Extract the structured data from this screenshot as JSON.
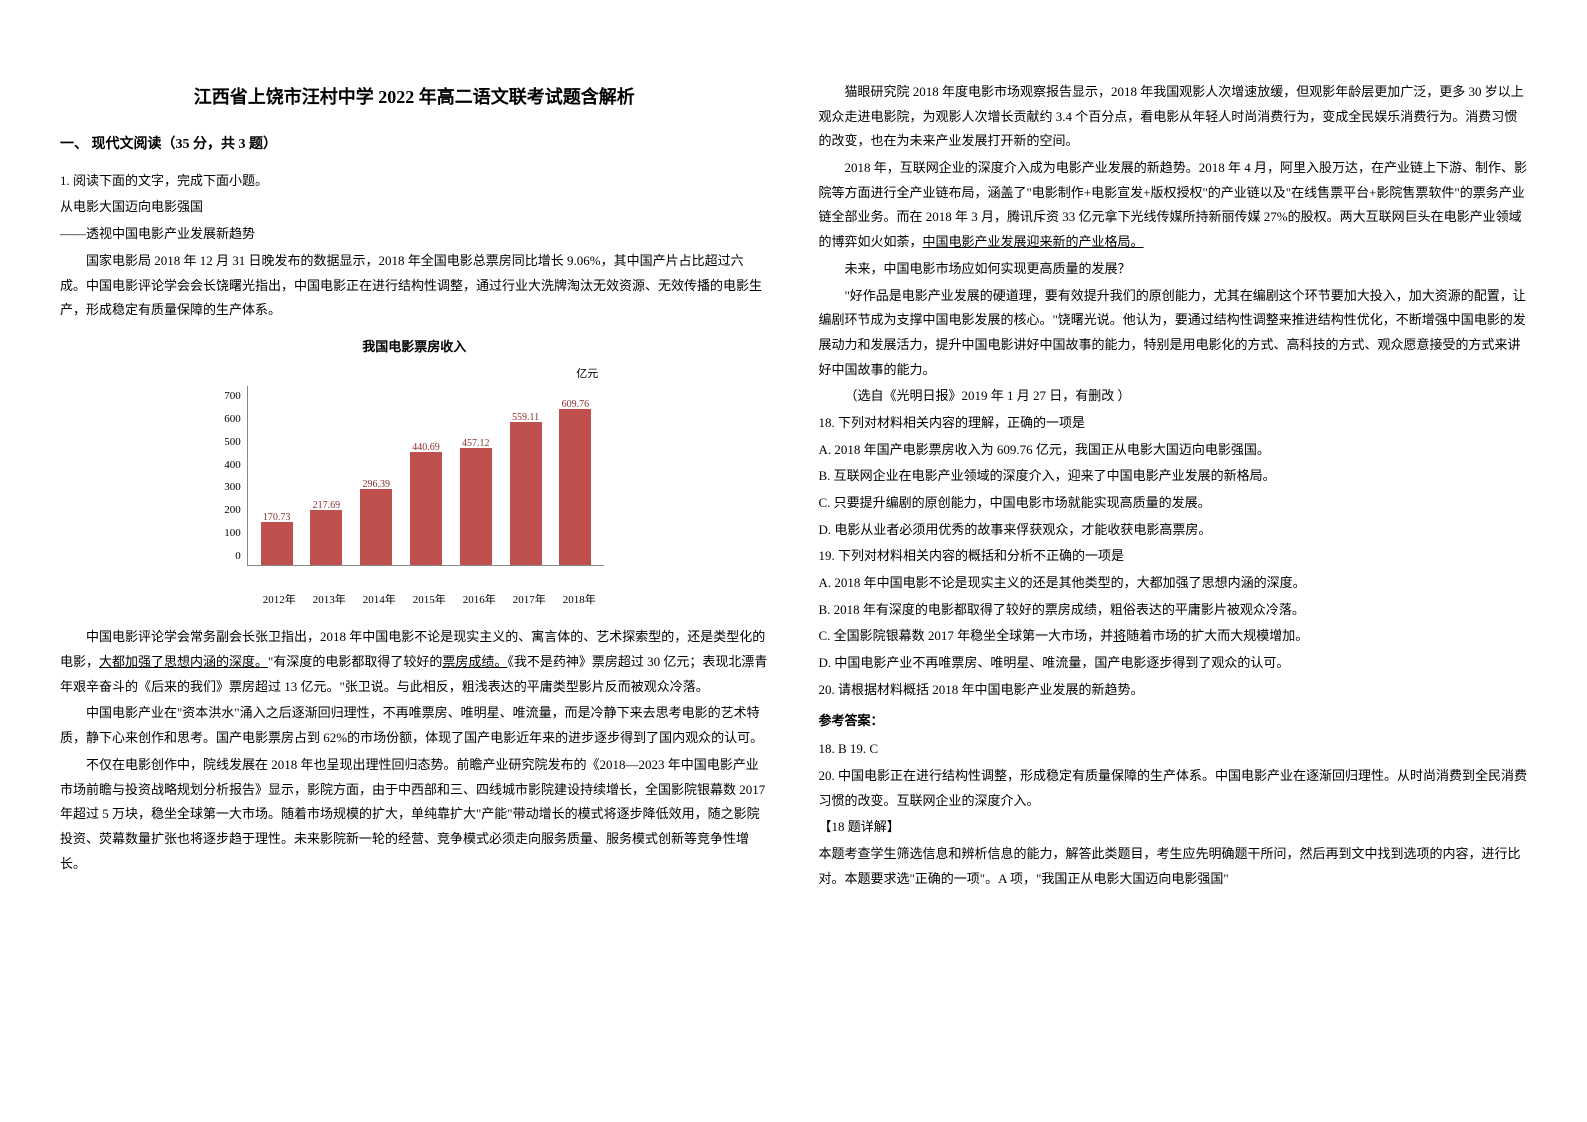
{
  "title": "江西省上饶市汪村中学 2022 年高二语文联考试题含解析",
  "section1": {
    "heading": "一、 现代文阅读（35 分，共 3 题）",
    "q1_intro": "1. 阅读下面的文字，完成下面小题。",
    "line2": "从电影大国迈向电影强国",
    "line3": "——透视中国电影产业发展新趋势",
    "p1": "国家电影局 2018 年 12 月 31 日晚发布的数据显示，2018 年全国电影总票房同比增长 9.06%，其中国产片占比超过六成。中国电影评论学会会长饶曙光指出，中国电影正在进行结构性调整，通过行业大洗牌淘汰无效资源、无效传播的电影生产，形成稳定有质量保障的生产体系。",
    "chart": {
      "title": "我国电影票房收入",
      "y_unit": "亿元",
      "y_ticks": [
        "700",
        "600",
        "500",
        "400",
        "300",
        "200",
        "100",
        "0"
      ],
      "y_max": 700,
      "bar_color": "#c0504d",
      "data": [
        {
          "year": "2012年",
          "value": 170.73,
          "label": "170.73"
        },
        {
          "year": "2013年",
          "value": 217.69,
          "label": "217.69"
        },
        {
          "year": "2014年",
          "value": 296.39,
          "label": "296.39"
        },
        {
          "year": "2015年",
          "value": 440.69,
          "label": "440.69"
        },
        {
          "year": "2016年",
          "value": 457.12,
          "label": "457.12"
        },
        {
          "year": "2017年",
          "value": 559.11,
          "label": "559.11"
        },
        {
          "year": "2018年",
          "value": 609.76,
          "label": "609.76"
        }
      ]
    },
    "p2_a": "中国电影评论学会常务副会长张卫指出，2018 年中国电影不论是现实主义的、寓言体的、艺术探索型的，还是类型化的电影，",
    "p2_u": "大都加强了思想内涵的深度。",
    "p2_b": "\"有深度的电影都取得了较好的",
    "p2_u2": "票房成绩。",
    "p2_c": "《我不是药神》票房超过 30 亿元；表现北漂青年艰辛奋斗的《后来的我们》票房超过 13 亿元。\"张卫说。与此相反，粗浅表达的平庸类型影片反而被观众冷落。",
    "p3": "中国电影产业在\"资本洪水\"涌入之后逐渐回归理性，不再唯票房、唯明星、唯流量，而是冷静下来去思考电影的艺术特质，静下心来创作和思考。国产电影票房占到 62%的市场份额，体现了国产电影近年来的进步逐步得到了国内观众的认可。",
    "p4": "不仅在电影创作中，院线发展在 2018 年也呈现出理性回归态势。前瞻产业研究院发布的《2018—2023 年中国电影产业市场前瞻与投资战略规划分析报告》显示，影院方面，由于中西部和三、四线城市影院建设持续增长，全国影院银幕数 2017 年超过 5 万块，稳坐全球第一大市场。随着市场规模的扩大，单纯靠扩大\"产能\"带动增长的模式将逐步降低效用，随之影院投资、荧幕数量扩张也将逐步趋于理性。未来影院新一轮的经营、竞争模式必须走向服务质量、服务模式创新等竞争性增长。"
  },
  "col2": {
    "p5": "猫眼研究院 2018 年度电影市场观察报告显示，2018 年我国观影人次增速放缓，但观影年龄层更加广泛，更多 30 岁以上观众走进电影院，为观影人次增长贡献约 3.4 个百分点，看电影从年轻人时尚消费行为，变成全民娱乐消费行为。消费习惯的改变，也在为未来产业发展打开新的空间。",
    "p6_a": "2018 年，互联网企业的深度介入成为电影产业发展的新趋势。2018 年 4 月，阿里入股万达，在产业链上下游、制作、影院等方面进行全产业链布局，涵盖了\"电影制作+电影宣发+版权授权\"的产业链以及\"在线售票平台+影院售票软件\"的票务产业链全部业务。而在 2018 年 3 月，腾讯斥资 33 亿元拿下光线传媒所持新丽传媒 27%的股权。两大互联网巨头在电影产业领域的博弈如火如荼，",
    "p6_u": "中国电影产业发展迎来新的产业格局。",
    "p7": "未来，中国电影市场应如何实现更高质量的发展？",
    "p8": "\"好作品是电影产业发展的硬道理，要有效提升我们的原创能力，尤其在编剧这个环节要加大投入，加大资源的配置，让编剧环节成为支撑中国电影发展的核心。\"饶曙光说。他认为，要通过结构性调整来推进结构性优化，不断增强中国电影的发展动力和发展活力，提升中国电影讲好中国故事的能力，特别是用电影化的方式、高科技的方式、观众愿意接受的方式来讲好中国故事的能力。",
    "source": "（选自《光明日报》2019 年 1 月 27 日，有删改 ）",
    "q18": "18.   下列对材料相关内容的理解，正确的一项是",
    "q18_a": "A.   2018 年国产电影票房收入为 609.76 亿元，我国正从电影大国迈向电影强国。",
    "q18_b": "B.   互联网企业在电影产业领域的深度介入，迎来了中国电影产业发展的新格局。",
    "q18_c": "C.   只要提升编剧的原创能力，中国电影市场就能实现高质量的发展。",
    "q18_d": "D.   电影从业者必须用优秀的故事来俘获观众，才能收获电影高票房。",
    "q19": "19.   下列对材料相关内容的概括和分析不正确的一项是",
    "q19_a": "A.   2018 年中国电影不论是现实主义的还是其他类型的，大都加强了思想内涵的深度。",
    "q19_b": "B.   2018 年有深度的电影都取得了较好的票房成绩，粗俗表达的平庸影片被观众冷落。",
    "q19_c_a": "C.   全国影院银幕数 2017 年稳坐全球第一大市场，并",
    "q19_c_u": "将",
    "q19_c_b": "随着市场的扩大而大规模增加。",
    "q19_d": "D.   中国电影产业不再唯票房、唯明星、唯流量，国产电影逐步得到了观众的认可。",
    "q20": "20.   请根据材料概括 2018 年中国电影产业发展的新趋势。",
    "answer_heading": "参考答案：",
    "ans_line1": "18. B    19. C",
    "ans_line2": "20.   中国电影正在进行结构性调整，形成稳定有质量保障的生产体系。中国电影产业在逐渐回归理性。从时尚消费到全民消费习惯的改变。互联网企业的深度介入。",
    "explain_h": "【18 题详解】",
    "explain_p": "本题考查学生筛选信息和辨析信息的能力，解答此类题目，考生应先明确题干所问，然后再到文中找到选项的内容，进行比对。本题要求选\"正确的一项\"。A 项，\"我国正从电影大国迈向电影强国\""
  }
}
